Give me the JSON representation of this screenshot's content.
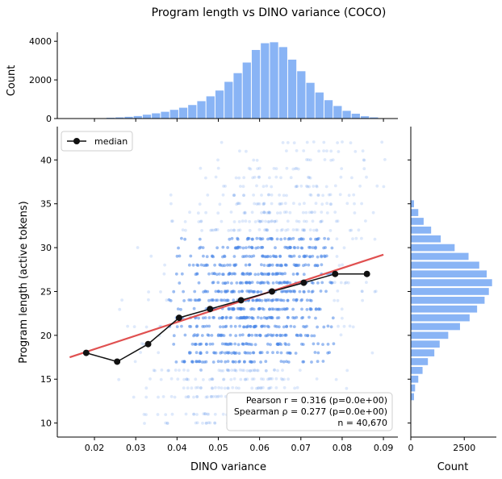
{
  "chart_data": [
    {
      "panel": "top-histogram",
      "type": "bar",
      "ylabel": "Count",
      "xlim": [
        0.011,
        0.0935
      ],
      "ylim": [
        0,
        4300
      ],
      "yticks": [
        0,
        2000,
        4000
      ],
      "bin_edges_start": 0.0185,
      "bin_width": 0.0022,
      "counts": [
        10,
        20,
        40,
        60,
        90,
        130,
        200,
        270,
        350,
        450,
        560,
        700,
        900,
        1150,
        1450,
        1900,
        2350,
        2900,
        3550,
        3900,
        3950,
        3700,
        3050,
        2450,
        1850,
        1350,
        950,
        650,
        400,
        250,
        120,
        60,
        20
      ],
      "color": "#89b4f5"
    },
    {
      "panel": "main-scatter",
      "type": "scatter",
      "title": "Program length vs DINO variance (COCO)",
      "xlabel": "DINO variance",
      "ylabel": "Program length (active tokens)",
      "xlim": [
        0.011,
        0.0935
      ],
      "ylim": [
        8.4,
        43.8
      ],
      "xticks": [
        "0.02",
        "0.03",
        "0.04",
        "0.05",
        "0.06",
        "0.07",
        "0.08",
        "0.09"
      ],
      "yticks": [
        "10",
        "15",
        "20",
        "25",
        "30",
        "35",
        "40"
      ],
      "point_color": "#4a86e8",
      "program_length_levels": [
        10,
        11,
        13,
        14,
        15,
        16,
        17,
        18,
        19,
        20,
        21,
        22,
        23,
        24,
        25,
        26,
        27,
        28,
        29,
        30,
        31,
        32,
        33,
        34,
        35,
        36,
        37,
        38,
        39,
        40,
        41,
        42
      ],
      "median": {
        "name": "median",
        "x": [
          0.018,
          0.0255,
          0.033,
          0.0405,
          0.048,
          0.0555,
          0.063,
          0.0707,
          0.0783,
          0.086
        ],
        "y": [
          18,
          17,
          19,
          22,
          23,
          24,
          25,
          26,
          27,
          27
        ]
      },
      "fit_line": {
        "x": [
          0.014,
          0.09
        ],
        "y": [
          17.5,
          29.2
        ],
        "color": "#e05050"
      },
      "legend": {
        "position": "top-left",
        "entries": [
          "median"
        ]
      },
      "annotation": [
        "Pearson r = 0.316 (p=0.0e+00)",
        "Spearman ρ = 0.277 (p=0.0e+00)",
        "n = 40,670"
      ]
    },
    {
      "panel": "right-histogram",
      "type": "bar",
      "orientation": "horizontal",
      "xlabel": "Count",
      "xlim": [
        0,
        4000
      ],
      "xticks": [
        "0",
        "2500"
      ],
      "levels": [
        13,
        14,
        15,
        16,
        17,
        18,
        19,
        20,
        21,
        22,
        23,
        24,
        25,
        26,
        27,
        28,
        29,
        30,
        31,
        32,
        33,
        34,
        35
      ],
      "counts": [
        150,
        200,
        350,
        550,
        800,
        1100,
        1350,
        1750,
        2300,
        2750,
        3100,
        3450,
        3650,
        3800,
        3550,
        3200,
        2700,
        2050,
        1400,
        950,
        600,
        350,
        150
      ],
      "color": "#89b4f5"
    }
  ]
}
